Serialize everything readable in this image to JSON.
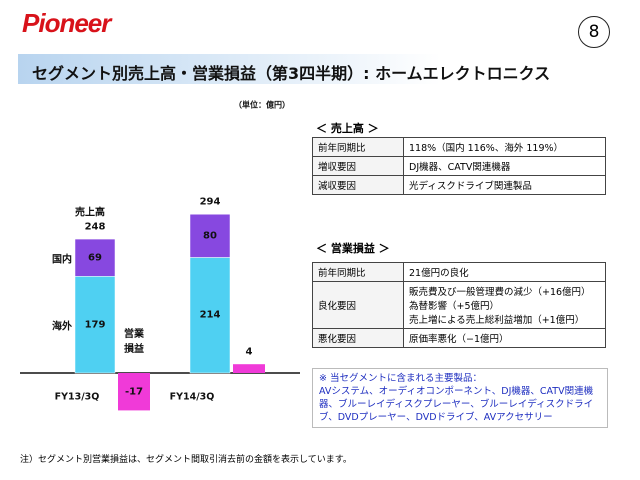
{
  "header": {
    "logo": "Pioneer",
    "page_number": "8",
    "title": "セグメント別売上高・営業損益（第3四半期）: ホームエレクトロニクス"
  },
  "chart_data": {
    "type": "bar",
    "unit": "（単位：億円）",
    "categories": [
      "FY13/3Q",
      "FY14/3Q"
    ],
    "sales_label": "売上高",
    "series": [
      {
        "name": "海外",
        "color": "#4fd0f2",
        "values": [
          179,
          214
        ]
      },
      {
        "name": "国内",
        "color": "#8748e0",
        "values": [
          69,
          80
        ]
      }
    ],
    "totals": [
      248,
      294
    ],
    "income": {
      "name": "営業損益",
      "color": "#f03ad8",
      "values": [
        -17,
        4
      ]
    }
  },
  "sales_table": {
    "heading": "＜ 売上高 ＞",
    "rows": [
      [
        "前年同期比",
        "118%（国内 116%、海外 119%）"
      ],
      [
        "増収要因",
        "DJ機器、CATV関連機器"
      ],
      [
        "減収要因",
        "光ディスクドライブ関連製品"
      ]
    ]
  },
  "income_table": {
    "heading": "＜ 営業損益 ＞",
    "rows": [
      [
        "前年同期比",
        [
          "21億円の良化"
        ]
      ],
      [
        "良化要因",
        [
          "販売費及び一般管理費の減少（+16億円）",
          "為替影響（+5億円）",
          "売上増による売上総利益増加（+1億円）"
        ]
      ],
      [
        "悪化要因",
        [
          "原価率悪化（−1億円）"
        ]
      ]
    ]
  },
  "note": {
    "heading": "※ 当セグメントに含まれる主要製品：",
    "text": "AVシステム、オーディオコンポーネント、DJ機器、CATV関連機器、ブルーレイディスクプレーヤー、ブルーレイディスクドライブ、DVDプレーヤー、DVDドライブ、AVアクセサリー"
  },
  "footnote": "注）セグメント別営業損益は、セグメント間取引消去前の金額を表示しています。"
}
